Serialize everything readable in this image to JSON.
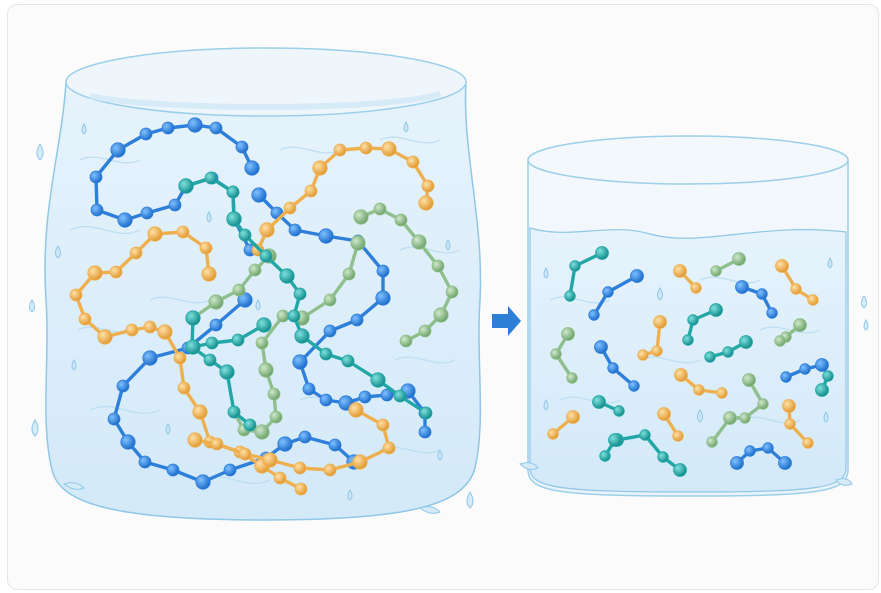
{
  "figure": {
    "background": "#fbfbfc",
    "border_color": "#e3e6ea",
    "water_fill": "#dbeefa",
    "water_edge": "#8fc7e6",
    "arrow_color": "#2d7fd6"
  },
  "polymer_colors": {
    "blue": "#2e7fd9",
    "orange": "#eeb04f",
    "green": "#8fbf8c",
    "teal": "#23a7a6"
  },
  "left_container": {
    "description_icon": "water-gel-block-icon",
    "state": "long entangled polymer chains"
  },
  "arrow": {
    "icon": "right-arrow-icon"
  },
  "right_container": {
    "description_icon": "water-beaker-icon",
    "state": "short dispersed polymer fragments"
  }
}
